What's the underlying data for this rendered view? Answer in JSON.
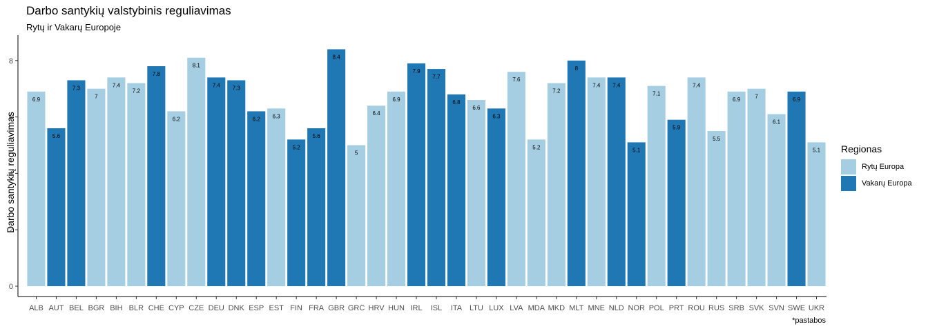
{
  "chart_data": {
    "type": "bar",
    "title": "Darbo santykių valstybinis reguliavimas",
    "subtitle": "Rytų ir Vakarų Europoje",
    "xlabel": "",
    "ylabel": "Darbo santykių reguliavimas",
    "caption": "*pastabos",
    "ylim": [
      0,
      8.9
    ],
    "yticks": [
      0,
      2,
      4,
      6,
      8
    ],
    "grid": false,
    "legend_position": "right",
    "legend": {
      "title": "Regionas",
      "entries": [
        {
          "name": "Rytų Europa",
          "color": "#a6cee3"
        },
        {
          "name": "Vakarų Europa",
          "color": "#1f78b4"
        }
      ]
    },
    "categories": [
      "ALB",
      "AUT",
      "BEL",
      "BGR",
      "BIH",
      "BLR",
      "CHE",
      "CYP",
      "CZE",
      "DEU",
      "DNK",
      "ESP",
      "EST",
      "FIN",
      "FRA",
      "GBR",
      "GRC",
      "HRV",
      "HUN",
      "IRL",
      "ISL",
      "ITA",
      "LTU",
      "LUX",
      "LVA",
      "MDA",
      "MKD",
      "MLT",
      "MNE",
      "NLD",
      "NOR",
      "POL",
      "PRT",
      "ROU",
      "RUS",
      "SRB",
      "SVK",
      "SVN",
      "SWE",
      "UKR"
    ],
    "values": [
      6.9,
      5.6,
      7.3,
      7,
      7.4,
      7.2,
      7.8,
      6.2,
      8.1,
      7.4,
      7.3,
      6.2,
      6.3,
      5.2,
      5.6,
      8.4,
      5,
      6.4,
      6.9,
      7.9,
      7.7,
      6.8,
      6.6,
      6.3,
      7.6,
      5.2,
      7.2,
      8,
      7.4,
      7.4,
      5.1,
      7.1,
      5.9,
      7.4,
      5.5,
      6.9,
      7,
      6.1,
      6.9,
      5.1
    ],
    "region": [
      "Rytų Europa",
      "Vakarų Europa",
      "Vakarų Europa",
      "Rytų Europa",
      "Rytų Europa",
      "Rytų Europa",
      "Vakarų Europa",
      "Rytų Europa",
      "Rytų Europa",
      "Vakarų Europa",
      "Vakarų Europa",
      "Vakarų Europa",
      "Rytų Europa",
      "Vakarų Europa",
      "Vakarų Europa",
      "Vakarų Europa",
      "Rytų Europa",
      "Rytų Europa",
      "Rytų Europa",
      "Vakarų Europa",
      "Vakarų Europa",
      "Vakarų Europa",
      "Rytų Europa",
      "Vakarų Europa",
      "Rytų Europa",
      "Rytų Europa",
      "Rytų Europa",
      "Vakarų Europa",
      "Rytų Europa",
      "Vakarų Europa",
      "Vakarų Europa",
      "Rytų Europa",
      "Vakarų Europa",
      "Rytų Europa",
      "Rytų Europa",
      "Rytų Europa",
      "Rytų Europa",
      "Rytų Europa",
      "Vakarų Europa",
      "Rytų Europa"
    ]
  }
}
